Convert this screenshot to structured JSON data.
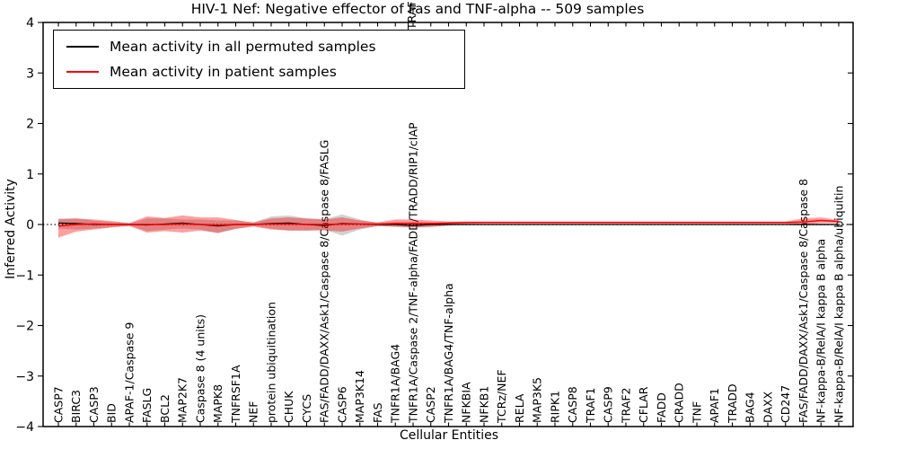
{
  "title": "HIV-1 Nef: Negative effector of Fas and TNF-alpha -- 509 samples",
  "axes": {
    "ylabel": "Inferred Activity",
    "xlabel": "Cellular Entities"
  },
  "legend": {
    "entries": [
      {
        "label": "Mean activity in all permuted samples",
        "color": "#000000"
      },
      {
        "label": "Mean activity in patient samples",
        "color": "#ff0000"
      }
    ]
  },
  "clipped_label_fragment": "TRAF",
  "chart_data": {
    "type": "line",
    "title": "HIV-1 Nef: Negative effector of Fas and TNF-alpha -- 509 samples",
    "xlabel": "Cellular Entities",
    "ylabel": "Inferred Activity",
    "ylim": [
      -4,
      4
    ],
    "yticks": [
      4,
      3,
      2,
      1,
      0,
      -1,
      -2,
      -3,
      -4
    ],
    "grid": false,
    "legend_position": "upper left",
    "zero_line": {
      "value": 0,
      "style": "dotted",
      "color": "#000000"
    },
    "categories": [
      "CASP7",
      "BIRC3",
      "CASP3",
      "BID",
      "APAF-1/Caspase 9",
      "FASLG",
      "BCL2",
      "MAP2K7",
      "Caspase 8 (4 units)",
      "MAPK8",
      "TNFRSF1A",
      "NEF",
      "protein ubiquitination",
      "CHUK",
      "CYCS",
      "FAS/FADD/DAXX/Ask1/Caspase 8/Caspase 8/FASLG",
      "CASP6",
      "MAP3K14",
      "FAS",
      "TNFR1A/BAG4",
      "TNFR1A/Caspase 2/TNF-alpha/FADD/TRADD/RIP1/cIAP",
      "CASP2",
      "TNFR1A/BAG4/TNF-alpha",
      "NFKBIA",
      "NFKB1",
      "TCRz/NEF",
      "RELA",
      "MAP3K5",
      "RIPK1",
      "CASP8",
      "TRAF1",
      "CASP9",
      "TRAF2",
      "CFLAR",
      "FADD",
      "CRADD",
      "TNF",
      "APAF1",
      "TRADD",
      "BAG4",
      "DAXX",
      "CD247",
      "FAS/FADD/DAXX/Ask1/Caspase 8/Caspase 8",
      "NF-kappa-B/RelA/I kappa B alpha",
      "NF-kappa-B/RelA/I kappa B alpha/ubiquitin"
    ],
    "series": [
      {
        "name": "Mean activity in all permuted samples",
        "color": "#000000",
        "values": [
          0.03,
          0.02,
          0,
          0,
          0,
          -0.01,
          0.01,
          0.03,
          0,
          -0.03,
          0,
          0,
          0.02,
          0.03,
          0,
          -0.02,
          0.02,
          0.01,
          0,
          0,
          -0.02,
          0,
          0,
          0,
          0,
          0,
          0,
          0,
          0,
          0,
          0,
          0,
          0,
          0,
          0,
          0,
          0,
          0,
          0,
          0,
          0,
          0,
          0,
          0,
          0
        ]
      },
      {
        "name": "Mean activity in patient samples",
        "color": "#ff0000",
        "values": [
          -0.03,
          0,
          0.01,
          0,
          0,
          0,
          0,
          0.01,
          0,
          -0.01,
          0,
          0,
          0.01,
          0.01,
          0,
          0,
          0.01,
          0.01,
          0.01,
          0.02,
          0.02,
          0.02,
          0.03,
          0.04,
          0.04,
          0.04,
          0.04,
          0.04,
          0.04,
          0.04,
          0.04,
          0.04,
          0.04,
          0.04,
          0.04,
          0.04,
          0.04,
          0.04,
          0.04,
          0.04,
          0.04,
          0.04,
          0.05,
          0.08,
          0.06
        ]
      }
    ],
    "bands": [
      {
        "name": "permuted-band",
        "color": "#000000",
        "opacity": 0.18,
        "lower": [
          -0.08,
          -0.1,
          -0.08,
          -0.05,
          -0.02,
          -0.13,
          -0.1,
          -0.08,
          -0.1,
          -0.18,
          -0.08,
          -0.03,
          -0.08,
          -0.12,
          -0.12,
          -0.1,
          -0.22,
          -0.1,
          -0.03,
          -0.05,
          -0.06,
          -0.04,
          -0.02,
          -0.01,
          -0.01,
          -0.01,
          -0.01,
          -0.01,
          -0.01,
          -0.01,
          -0.01,
          -0.01,
          -0.01,
          -0.01,
          -0.01,
          -0.01,
          -0.01,
          -0.01,
          -0.01,
          -0.01,
          -0.01,
          -0.01,
          -0.02,
          -0.02,
          -0.01
        ],
        "upper": [
          0.12,
          0.12,
          0.08,
          0.05,
          0.02,
          0.12,
          0.12,
          0.1,
          0.1,
          0.08,
          0.08,
          0.04,
          0.16,
          0.18,
          0.12,
          0.1,
          0.2,
          0.1,
          0.03,
          0.05,
          0.05,
          0.04,
          0.02,
          0.01,
          0.01,
          0.01,
          0.01,
          0.01,
          0.01,
          0.01,
          0.01,
          0.01,
          0.01,
          0.01,
          0.01,
          0.01,
          0.01,
          0.01,
          0.01,
          0.01,
          0.01,
          0.01,
          0.02,
          0.02,
          0.01
        ]
      },
      {
        "name": "patient-band",
        "color": "#ff0000",
        "opacity": 0.38,
        "lower": [
          -0.26,
          -0.14,
          -0.1,
          -0.06,
          -0.03,
          -0.16,
          -0.13,
          -0.16,
          -0.12,
          -0.16,
          -0.09,
          -0.04,
          -0.1,
          -0.12,
          -0.12,
          -0.12,
          -0.14,
          -0.08,
          -0.03,
          -0.04,
          -0.06,
          -0.05,
          -0.02,
          0.01,
          0.02,
          0.02,
          0.02,
          0.02,
          0.02,
          0.02,
          0.02,
          0.02,
          0.02,
          0.02,
          0.02,
          0.02,
          0.02,
          0.02,
          0.02,
          0.02,
          0.02,
          0.02,
          0.0,
          0.03,
          0.03
        ],
        "upper": [
          0.1,
          0.12,
          0.1,
          0.07,
          0.03,
          0.16,
          0.13,
          0.18,
          0.14,
          0.14,
          0.09,
          0.04,
          0.12,
          0.14,
          0.12,
          0.1,
          0.14,
          0.08,
          0.04,
          0.1,
          0.1,
          0.08,
          0.06,
          0.06,
          0.06,
          0.06,
          0.06,
          0.06,
          0.06,
          0.06,
          0.06,
          0.06,
          0.06,
          0.06,
          0.06,
          0.06,
          0.06,
          0.06,
          0.06,
          0.06,
          0.06,
          0.06,
          0.12,
          0.14,
          0.09
        ]
      }
    ]
  }
}
